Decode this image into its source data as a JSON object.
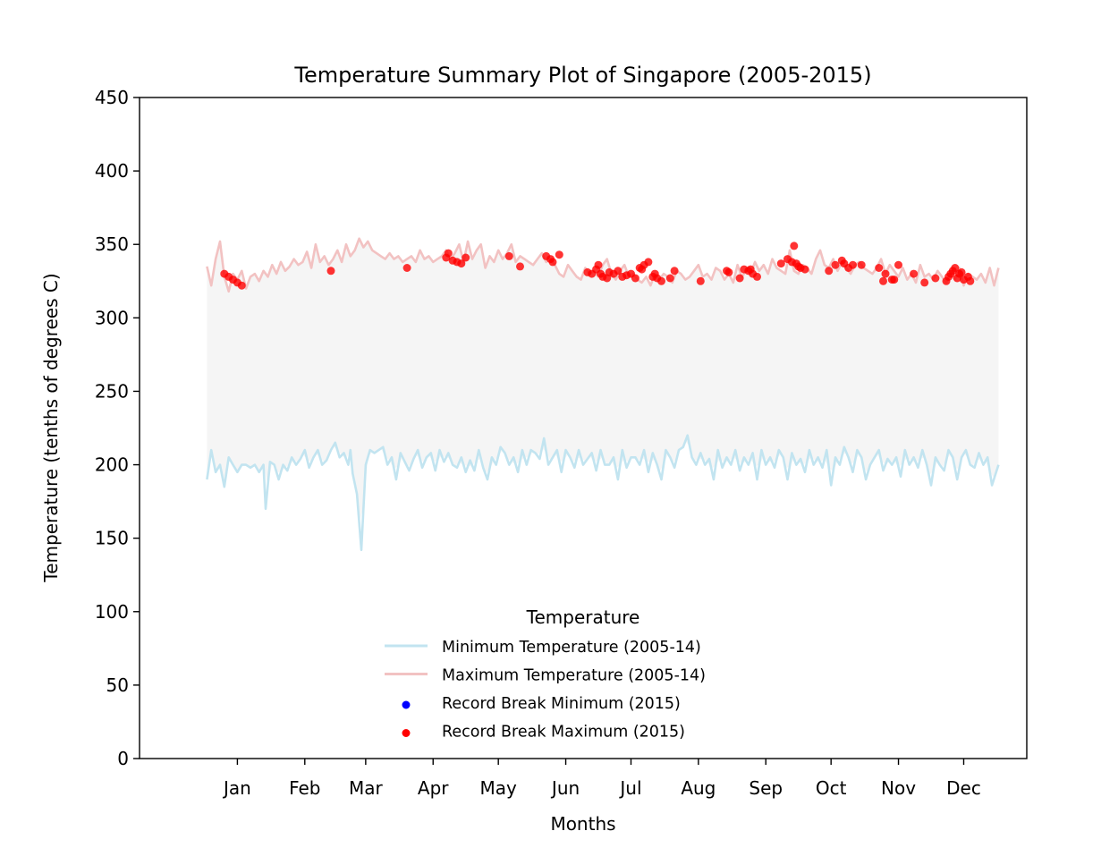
{
  "chart_data": {
    "type": "line",
    "title": "Temperature Summary Plot of Singapore (2005-2015)",
    "xlabel": "Months",
    "ylabel": "Temperature (tenths of degrees C)",
    "ylim": [
      0,
      450
    ],
    "yticks": [
      0,
      50,
      100,
      150,
      200,
      250,
      300,
      350,
      400,
      450
    ],
    "xlim": [
      -30,
      378
    ],
    "xtick_days": [
      15,
      46,
      74,
      105,
      135,
      166,
      196,
      227,
      258,
      288,
      319,
      349
    ],
    "xtick_labels": [
      "Jan",
      "Feb",
      "Mar",
      "Apr",
      "May",
      "Jun",
      "Jul",
      "Aug",
      "Sep",
      "Oct",
      "Nov",
      "Dec"
    ],
    "fill_between": {
      "color": "#f5f5f5"
    },
    "grid": false,
    "legend": {
      "title": "Temperature",
      "placement": "lower center",
      "entries": [
        {
          "label": "Minimum Temperature (2005-14)",
          "kind": "line",
          "color": "#c2e4f0"
        },
        {
          "label": "Maximum Temperature (2005-14)",
          "kind": "line",
          "color": "#f2c2c2"
        },
        {
          "label": "Record Break Minimum (2015)",
          "kind": "dot",
          "color": "#0000ff"
        },
        {
          "label": "Record Break Maximum (2015)",
          "kind": "dot",
          "color": "#ff0000"
        }
      ]
    },
    "series": [
      {
        "name": "Minimum Temperature (2005-14)",
        "color": "#c2e4f0",
        "x": [
          1,
          3,
          5,
          7,
          9,
          11,
          13,
          15,
          17,
          19,
          21,
          23,
          25,
          27,
          28,
          30,
          32,
          34,
          36,
          38,
          40,
          42,
          44,
          46,
          48,
          50,
          52,
          54,
          56,
          58,
          60,
          62,
          64,
          66,
          67,
          68,
          70,
          72,
          74,
          76,
          78,
          80,
          82,
          84,
          86,
          88,
          90,
          92,
          94,
          96,
          98,
          100,
          102,
          104,
          106,
          108,
          110,
          112,
          114,
          116,
          118,
          120,
          122,
          124,
          126,
          128,
          130,
          132,
          134,
          136,
          138,
          140,
          142,
          144,
          146,
          148,
          150,
          152,
          154,
          156,
          158,
          160,
          162,
          164,
          166,
          168,
          170,
          172,
          174,
          176,
          178,
          180,
          182,
          184,
          186,
          188,
          190,
          192,
          194,
          196,
          198,
          200,
          202,
          204,
          206,
          208,
          210,
          212,
          214,
          216,
          218,
          220,
          222,
          224,
          226,
          228,
          230,
          232,
          234,
          236,
          238,
          240,
          242,
          244,
          246,
          248,
          250,
          252,
          254,
          256,
          258,
          260,
          262,
          264,
          266,
          268,
          270,
          272,
          274,
          276,
          278,
          280,
          282,
          284,
          286,
          288,
          290,
          292,
          294,
          296,
          298,
          300,
          302,
          304,
          306,
          308,
          310,
          312,
          314,
          316,
          318,
          320,
          322,
          324,
          326,
          328,
          330,
          332,
          334,
          336,
          338,
          340,
          342,
          344,
          346,
          348,
          350,
          352,
          354,
          356,
          358,
          360,
          362,
          365
        ],
        "values": [
          190,
          210,
          195,
          200,
          185,
          205,
          200,
          195,
          200,
          200,
          198,
          200,
          195,
          200,
          170,
          202,
          200,
          190,
          200,
          196,
          205,
          200,
          204,
          210,
          198,
          205,
          210,
          200,
          203,
          210,
          215,
          205,
          208,
          200,
          210,
          194,
          180,
          142,
          200,
          210,
          208,
          210,
          212,
          200,
          205,
          190,
          208,
          202,
          196,
          204,
          210,
          198,
          205,
          208,
          196,
          210,
          202,
          208,
          200,
          198,
          205,
          195,
          203,
          196,
          210,
          198,
          190,
          205,
          200,
          212,
          208,
          200,
          205,
          195,
          210,
          200,
          210,
          208,
          204,
          218,
          200,
          205,
          210,
          195,
          210,
          205,
          198,
          210,
          200,
          204,
          208,
          196,
          210,
          200,
          200,
          205,
          190,
          210,
          198,
          205,
          205,
          200,
          210,
          195,
          208,
          200,
          190,
          210,
          205,
          198,
          210,
          212,
          220,
          205,
          200,
          208,
          200,
          204,
          190,
          210,
          198,
          205,
          200,
          210,
          196,
          205,
          200,
          208,
          190,
          210,
          200,
          205,
          198,
          210,
          205,
          190,
          208,
          200,
          204,
          195,
          210,
          200,
          205,
          198,
          210,
          186,
          205,
          200,
          212,
          205,
          195,
          210,
          205,
          190,
          200,
          205,
          210,
          196,
          204,
          200,
          205,
          192,
          210,
          200,
          205,
          198,
          210,
          200,
          186,
          205,
          200,
          196,
          210,
          205,
          190,
          205,
          210,
          200,
          198,
          208,
          200,
          205,
          186,
          200
        ],
        "note_data_read": "approximate values read off the chart"
      },
      {
        "name": "Maximum Temperature (2005-14)",
        "color": "#f2c2c2",
        "x": [
          1,
          3,
          5,
          7,
          9,
          11,
          13,
          15,
          17,
          19,
          21,
          23,
          25,
          27,
          29,
          31,
          33,
          35,
          37,
          39,
          41,
          43,
          45,
          47,
          49,
          51,
          53,
          55,
          57,
          59,
          61,
          63,
          65,
          67,
          69,
          71,
          73,
          75,
          77,
          79,
          81,
          83,
          85,
          87,
          89,
          91,
          93,
          95,
          97,
          99,
          101,
          103,
          105,
          107,
          109,
          111,
          113,
          115,
          117,
          119,
          121,
          123,
          125,
          127,
          129,
          131,
          133,
          135,
          137,
          139,
          141,
          143,
          145,
          147,
          149,
          151,
          153,
          155,
          157,
          159,
          161,
          163,
          165,
          167,
          169,
          171,
          173,
          175,
          177,
          179,
          181,
          183,
          185,
          187,
          189,
          191,
          193,
          195,
          197,
          199,
          201,
          203,
          205,
          207,
          209,
          211,
          213,
          215,
          217,
          219,
          221,
          223,
          225,
          227,
          229,
          231,
          233,
          235,
          237,
          239,
          241,
          243,
          245,
          247,
          249,
          251,
          253,
          255,
          257,
          259,
          261,
          263,
          265,
          267,
          269,
          271,
          273,
          275,
          277,
          279,
          281,
          283,
          285,
          287,
          289,
          291,
          293,
          295,
          297,
          299,
          301,
          303,
          305,
          307,
          309,
          311,
          313,
          315,
          317,
          319,
          321,
          323,
          325,
          327,
          329,
          331,
          333,
          335,
          337,
          339,
          341,
          343,
          345,
          347,
          349,
          351,
          353,
          355,
          357,
          359,
          361,
          363,
          365
        ],
        "values": [
          335,
          322,
          340,
          352,
          328,
          318,
          330,
          326,
          332,
          320,
          328,
          330,
          325,
          332,
          328,
          336,
          330,
          338,
          332,
          335,
          340,
          336,
          338,
          345,
          334,
          350,
          338,
          342,
          336,
          340,
          346,
          338,
          350,
          342,
          346,
          354,
          348,
          352,
          346,
          344,
          342,
          340,
          344,
          340,
          342,
          338,
          340,
          342,
          338,
          346,
          340,
          342,
          338,
          340,
          342,
          346,
          340,
          344,
          350,
          338,
          352,
          340,
          346,
          350,
          334,
          342,
          338,
          346,
          340,
          344,
          350,
          338,
          342,
          340,
          338,
          336,
          340,
          344,
          338,
          340,
          336,
          330,
          328,
          336,
          332,
          328,
          326,
          334,
          330,
          332,
          328,
          336,
          340,
          330,
          326,
          332,
          336,
          328,
          330,
          326,
          324,
          328,
          322,
          330,
          326,
          330,
          328,
          324,
          332,
          330,
          326,
          328,
          332,
          336,
          328,
          330,
          326,
          334,
          332,
          326,
          330,
          324,
          336,
          328,
          332,
          330,
          338,
          332,
          336,
          330,
          340,
          334,
          332,
          330,
          346,
          332,
          330,
          336,
          334,
          330,
          340,
          346,
          336,
          334,
          340,
          332,
          338,
          334,
          330,
          336,
          338,
          334,
          332,
          330,
          334,
          340,
          330,
          336,
          332,
          328,
          334,
          326,
          330,
          324,
          336,
          328,
          330,
          326,
          332,
          328,
          324,
          330,
          326,
          334,
          322,
          330,
          328,
          326,
          330,
          324,
          334,
          322,
          334
        ],
        "note_data_read": "approximate values read off the chart"
      }
    ],
    "scatter_series": [
      {
        "name": "Record Break Maximum (2015)",
        "color": "#ff0000",
        "x": [
          9,
          11,
          13,
          15,
          17,
          58,
          93,
          111,
          112,
          114,
          116,
          118,
          120,
          140,
          145,
          157,
          159,
          160,
          163,
          176,
          178,
          180,
          181,
          182,
          183,
          185,
          186,
          188,
          190,
          192,
          194,
          196,
          198,
          200,
          201,
          202,
          204,
          206,
          207,
          208,
          210,
          214,
          216,
          228,
          240,
          241,
          246,
          248,
          250,
          251,
          252,
          254,
          265,
          268,
          270,
          271,
          272,
          273,
          274,
          276,
          287,
          290,
          293,
          294,
          296,
          298,
          302,
          310,
          312,
          313,
          316,
          317,
          319,
          326,
          331,
          336,
          341,
          342,
          343,
          344,
          345,
          346,
          347,
          348,
          349,
          351,
          352
        ],
        "values": [
          330,
          328,
          326,
          324,
          322,
          332,
          334,
          341,
          344,
          339,
          338,
          337,
          341,
          342,
          335,
          342,
          340,
          338,
          343,
          331,
          330,
          333,
          336,
          330,
          328,
          327,
          331,
          330,
          332,
          328,
          329,
          330,
          327,
          334,
          333,
          336,
          338,
          328,
          330,
          327,
          325,
          327,
          332,
          325,
          332,
          331,
          327,
          333,
          332,
          333,
          330,
          328,
          337,
          340,
          338,
          349,
          337,
          335,
          334,
          333,
          332,
          336,
          339,
          337,
          334,
          336,
          336,
          334,
          325,
          330,
          326,
          326,
          336,
          330,
          324,
          327,
          325,
          328,
          330,
          332,
          334,
          327,
          330,
          331,
          326,
          328,
          325
        ],
        "note_data_read": "approximate values read off the chart"
      },
      {
        "name": "Record Break Minimum (2015)",
        "color": "#0000ff",
        "x": [],
        "values": []
      }
    ]
  }
}
